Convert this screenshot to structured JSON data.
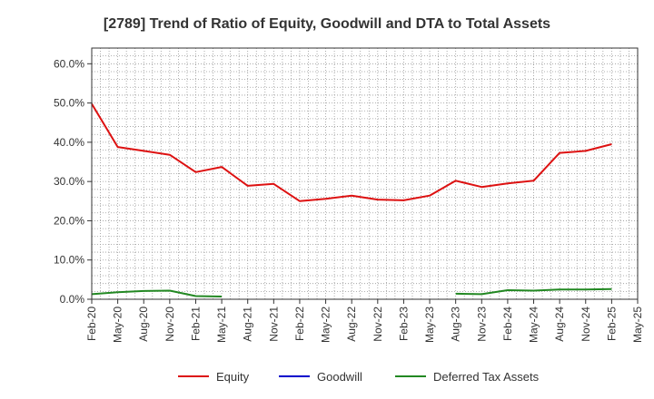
{
  "chart_data": {
    "type": "line",
    "title": "[2789]  Trend of Ratio of Equity, Goodwill and DTA to Total Assets",
    "xlabel": "",
    "ylabel": "",
    "ylim": [
      0,
      0.64
    ],
    "yticks": [
      0,
      0.1,
      0.2,
      0.3,
      0.4,
      0.5,
      0.6
    ],
    "ytick_labels": [
      "0.0%",
      "10.0%",
      "20.0%",
      "30.0%",
      "40.0%",
      "50.0%",
      "60.0%"
    ],
    "xticks": [
      "Feb-20",
      "May-20",
      "Aug-20",
      "Nov-20",
      "Feb-21",
      "May-21",
      "Aug-21",
      "Nov-21",
      "Feb-22",
      "May-22",
      "Aug-22",
      "Nov-22",
      "Feb-23",
      "May-23",
      "Aug-23",
      "Nov-23",
      "Feb-24",
      "May-24",
      "Aug-24",
      "Nov-24",
      "Feb-25",
      "May-25"
    ],
    "x": [
      "Feb-20",
      "May-20",
      "Aug-20",
      "Nov-20",
      "Feb-21",
      "May-21",
      "Aug-21",
      "Nov-21",
      "Feb-22",
      "May-22",
      "Aug-22",
      "Nov-22",
      "Feb-23",
      "May-23",
      "Aug-23",
      "Nov-23",
      "Feb-24",
      "May-24",
      "Aug-24",
      "Nov-24",
      "Feb-25",
      "May-25"
    ],
    "grid": true,
    "legend_position": "bottom",
    "series": [
      {
        "name": "Equity",
        "color": "#dd1111",
        "values": [
          0.498,
          0.388,
          0.378,
          0.368,
          0.324,
          0.337,
          0.289,
          0.294,
          0.25,
          0.256,
          0.264,
          0.254,
          0.252,
          0.264,
          0.302,
          0.286,
          0.295,
          0.302,
          0.373,
          0.378,
          0.395,
          null
        ]
      },
      {
        "name": "Goodwill",
        "color": "#0000cc",
        "values": [
          null,
          null,
          null,
          null,
          null,
          null,
          null,
          null,
          null,
          null,
          null,
          null,
          null,
          null,
          null,
          null,
          null,
          null,
          null,
          null,
          null,
          null
        ]
      },
      {
        "name": "Deferred Tax Assets",
        "color": "#228822",
        "values": [
          0.013,
          0.018,
          0.021,
          0.022,
          0.008,
          0.007,
          null,
          null,
          null,
          null,
          null,
          null,
          null,
          null,
          0.014,
          0.013,
          0.023,
          0.022,
          0.025,
          0.025,
          0.026,
          null
        ]
      }
    ]
  }
}
